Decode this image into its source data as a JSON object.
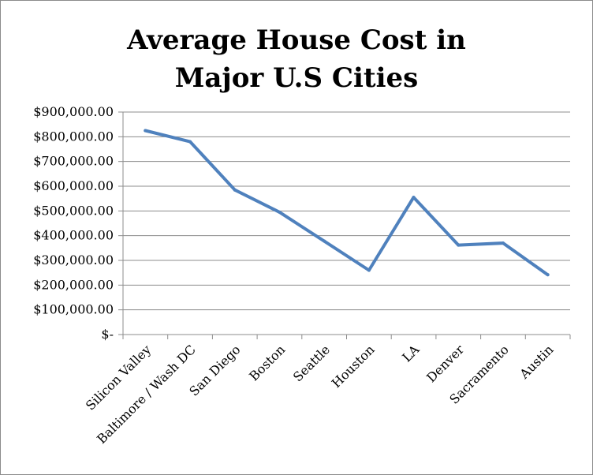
{
  "chart_data": {
    "type": "line",
    "title_lines": [
      "Average House Cost in",
      "Major U.S Cities"
    ],
    "categories": [
      "Silicon Valley",
      "Baltimore / Wash DC",
      "San Diego",
      "Boston",
      "Seattle",
      "Houston",
      "LA",
      "Denver",
      "Sacramento",
      "Austin"
    ],
    "series": [
      {
        "values": [
          825000,
          780000,
          585000,
          495000,
          378000,
          260000,
          555000,
          362000,
          370000,
          242000
        ],
        "color": "#4f81bd"
      }
    ],
    "yticks": [
      "$-",
      "$100,000.00",
      "$200,000.00",
      "$300,000.00",
      "$400,000.00",
      "$500,000.00",
      "$600,000.00",
      "$700,000.00",
      "$800,000.00",
      "$900,000.00"
    ],
    "ylim": [
      0,
      900000
    ],
    "grid": true,
    "legend": "none"
  }
}
